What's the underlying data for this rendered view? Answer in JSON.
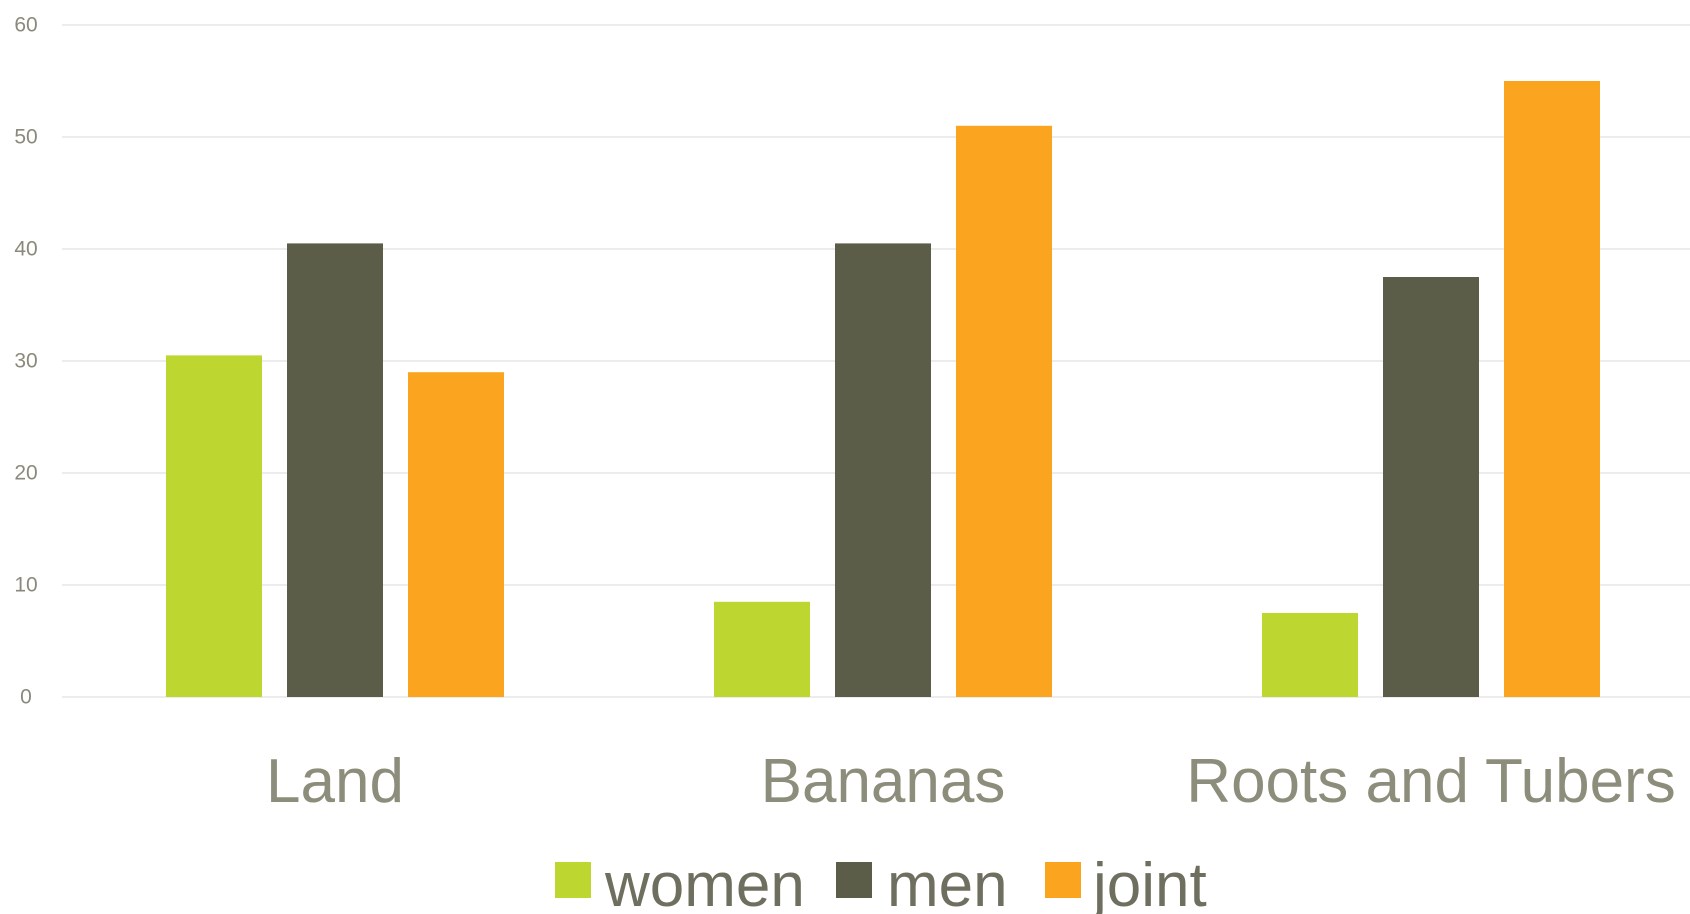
{
  "chart_data": {
    "type": "bar",
    "categories": [
      "Land",
      "Bananas",
      "Roots and Tubers"
    ],
    "series": [
      {
        "name": "women",
        "color": "#bdd630",
        "values": [
          30.5,
          8.5,
          7.5
        ]
      },
      {
        "name": "men",
        "color": "#5c5d48",
        "values": [
          40.5,
          40.5,
          37.5
        ]
      },
      {
        "name": "joint",
        "color": "#fba41f",
        "values": [
          29,
          51,
          55
        ]
      }
    ],
    "title": "",
    "xlabel": "",
    "ylabel": "",
    "ylim": [
      0,
      60
    ],
    "yticks": [
      "0",
      "10",
      "20",
      "30",
      "40",
      "50",
      "60"
    ],
    "grid": true,
    "legend_position": "bottom"
  }
}
